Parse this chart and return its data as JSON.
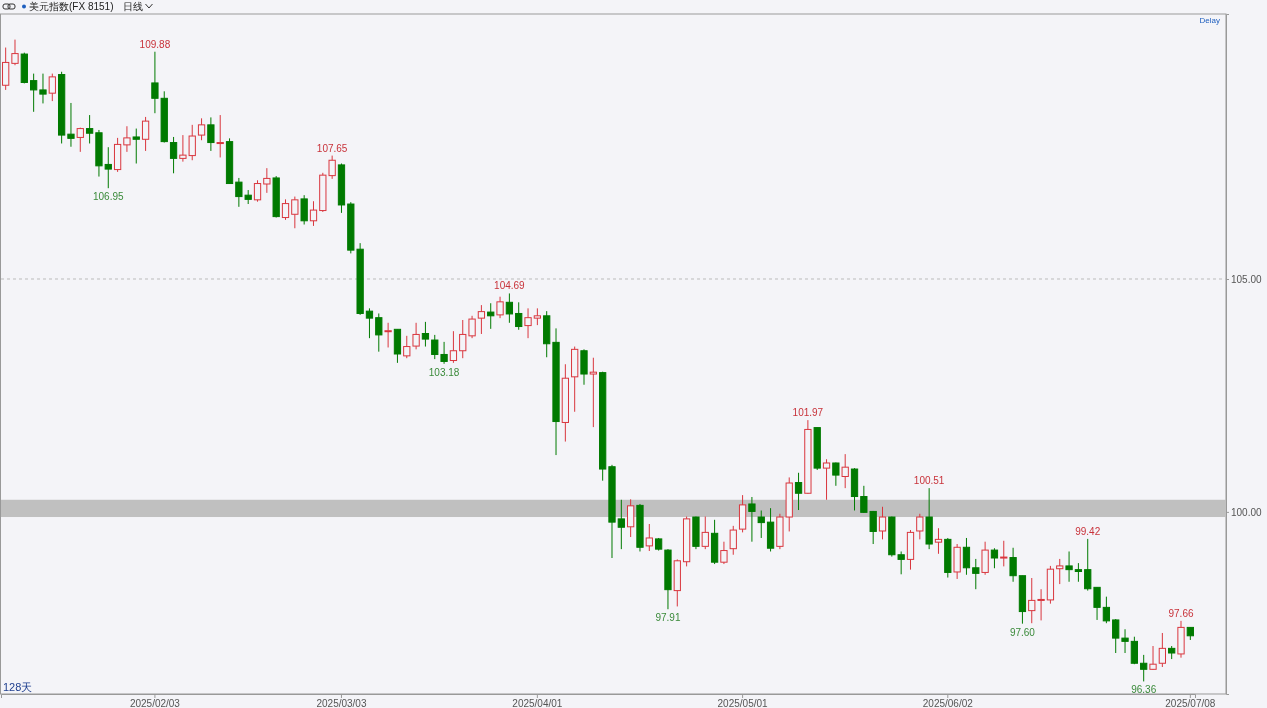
{
  "chart_data": {
    "type": "candlestick",
    "title": "美元指数(FX 8151)",
    "subtitle": "日线",
    "categories": [
      null,
      null,
      null,
      null,
      null,
      null,
      null,
      null,
      null,
      null,
      null,
      null,
      null,
      null,
      null,
      null,
      "2025/02/03",
      null,
      null,
      null,
      null,
      null,
      null,
      null,
      null,
      null,
      null,
      null,
      null,
      null,
      null,
      null,
      null,
      null,
      null,
      null,
      "2025/03/03",
      null,
      null,
      null,
      null,
      null,
      null,
      null,
      null,
      null,
      null,
      null,
      null,
      null,
      null,
      null,
      null,
      null,
      null,
      null,
      null,
      "2025/04/01",
      null,
      null,
      null,
      null,
      null,
      null,
      null,
      null,
      null,
      null,
      null,
      null,
      null,
      null,
      null,
      null,
      null,
      null,
      null,
      null,
      null,
      "2025/05/01",
      null,
      null,
      null,
      null,
      null,
      null,
      null,
      null,
      null,
      null,
      null,
      null,
      null,
      null,
      null,
      null,
      null,
      null,
      null,
      null,
      null,
      "2025/06/02",
      null,
      null,
      null,
      null,
      null,
      null,
      null,
      null,
      null,
      null,
      null,
      null,
      null,
      null,
      null,
      null,
      null,
      null,
      null,
      null,
      null,
      null,
      null,
      null,
      null,
      "2025/07/08"
    ],
    "ohlc": [
      [
        109.16,
        109.97,
        109.06,
        109.65
      ],
      [
        109.63,
        110.14,
        109.59,
        109.84
      ],
      [
        109.83,
        109.86,
        109.2,
        109.22
      ],
      [
        109.26,
        109.41,
        108.59,
        109.06
      ],
      [
        109.06,
        109.41,
        108.77,
        108.97
      ],
      [
        108.99,
        109.41,
        108.82,
        109.34
      ],
      [
        109.39,
        109.45,
        107.91,
        108.09
      ],
      [
        108.11,
        108.78,
        107.84,
        108.02
      ],
      [
        108.04,
        108.25,
        107.73,
        108.23
      ],
      [
        108.23,
        108.52,
        107.91,
        108.13
      ],
      [
        108.14,
        108.2,
        107.2,
        107.43
      ],
      [
        107.46,
        107.83,
        106.95,
        107.36
      ],
      [
        107.35,
        108.03,
        107.3,
        107.89
      ],
      [
        107.88,
        108.28,
        107.73,
        108.03
      ],
      [
        108.05,
        108.23,
        107.48,
        108.0
      ],
      [
        108.0,
        108.48,
        107.75,
        108.39
      ],
      [
        109.21,
        109.88,
        108.56,
        108.88
      ],
      [
        108.88,
        109.03,
        107.93,
        107.95
      ],
      [
        107.93,
        108.05,
        107.27,
        107.59
      ],
      [
        107.59,
        108.09,
        107.52,
        107.66
      ],
      [
        107.65,
        108.31,
        107.55,
        108.07
      ],
      [
        108.09,
        108.45,
        107.98,
        108.31
      ],
      [
        108.31,
        108.47,
        107.75,
        107.93
      ],
      [
        107.93,
        108.52,
        107.61,
        107.93
      ],
      [
        107.95,
        108.02,
        107.04,
        107.05
      ],
      [
        107.08,
        107.17,
        106.55,
        106.77
      ],
      [
        106.8,
        106.91,
        106.61,
        106.71
      ],
      [
        106.7,
        107.12,
        106.66,
        107.05
      ],
      [
        107.04,
        107.38,
        106.85,
        107.16
      ],
      [
        107.17,
        107.21,
        106.32,
        106.34
      ],
      [
        106.32,
        106.71,
        106.27,
        106.62
      ],
      [
        106.39,
        106.77,
        106.09,
        106.7
      ],
      [
        106.72,
        106.8,
        106.17,
        106.25
      ],
      [
        106.25,
        106.67,
        106.14,
        106.48
      ],
      [
        106.47,
        107.28,
        106.44,
        107.23
      ],
      [
        107.22,
        107.65,
        107.15,
        107.55
      ],
      [
        107.45,
        107.48,
        106.42,
        106.59
      ],
      [
        106.61,
        106.65,
        105.55,
        105.62
      ],
      [
        105.64,
        105.77,
        104.23,
        104.26
      ],
      [
        104.31,
        104.37,
        103.73,
        104.16
      ],
      [
        104.17,
        104.26,
        103.44,
        103.8
      ],
      [
        103.87,
        104.06,
        103.53,
        103.89
      ],
      [
        103.92,
        103.92,
        103.2,
        103.39
      ],
      [
        103.35,
        103.78,
        103.3,
        103.55
      ],
      [
        103.56,
        104.06,
        103.49,
        103.81
      ],
      [
        103.83,
        104.08,
        103.55,
        103.71
      ],
      [
        103.69,
        103.8,
        103.28,
        103.38
      ],
      [
        103.38,
        103.65,
        103.18,
        103.23
      ],
      [
        103.25,
        103.88,
        103.2,
        103.46
      ],
      [
        103.46,
        104.12,
        103.3,
        103.81
      ],
      [
        103.78,
        104.21,
        103.73,
        104.14
      ],
      [
        104.16,
        104.44,
        103.82,
        104.3
      ],
      [
        104.29,
        104.48,
        103.93,
        104.21
      ],
      [
        104.23,
        104.62,
        104.16,
        104.51
      ],
      [
        104.5,
        104.69,
        104.06,
        104.25
      ],
      [
        104.26,
        104.5,
        103.91,
        103.98
      ],
      [
        104.0,
        104.37,
        103.73,
        104.17
      ],
      [
        104.16,
        104.37,
        104.01,
        104.21
      ],
      [
        104.21,
        104.31,
        103.32,
        103.61
      ],
      [
        103.64,
        103.94,
        101.22,
        101.94
      ],
      [
        101.92,
        103.17,
        101.51,
        102.87
      ],
      [
        102.9,
        103.55,
        102.15,
        103.49
      ],
      [
        103.46,
        103.49,
        102.73,
        102.96
      ],
      [
        102.96,
        103.31,
        101.82,
        103.0
      ],
      [
        102.99,
        103.01,
        100.67,
        100.92
      ],
      [
        100.97,
        101.01,
        99.01,
        99.78
      ],
      [
        99.85,
        100.26,
        99.2,
        99.67
      ],
      [
        99.68,
        100.27,
        99.46,
        100.13
      ],
      [
        100.14,
        100.17,
        99.15,
        99.24
      ],
      [
        99.27,
        99.74,
        99.16,
        99.44
      ],
      [
        99.42,
        99.44,
        99.17,
        99.2
      ],
      [
        99.18,
        99.2,
        97.91,
        98.33
      ],
      [
        98.31,
        98.98,
        97.97,
        98.95
      ],
      [
        98.93,
        99.9,
        98.83,
        99.85
      ],
      [
        99.89,
        99.9,
        99.2,
        99.26
      ],
      [
        99.26,
        99.9,
        99.2,
        99.56
      ],
      [
        99.54,
        99.83,
        98.88,
        98.92
      ],
      [
        98.92,
        99.36,
        98.88,
        99.17
      ],
      [
        99.21,
        99.7,
        99.08,
        99.61
      ],
      [
        99.63,
        100.36,
        99.56,
        100.15
      ],
      [
        100.17,
        100.32,
        99.36,
        100.01
      ],
      [
        99.89,
        100.03,
        99.44,
        99.77
      ],
      [
        99.78,
        100.08,
        99.15,
        99.22
      ],
      [
        99.26,
        99.96,
        99.2,
        99.89
      ],
      [
        99.89,
        100.74,
        99.58,
        100.62
      ],
      [
        100.63,
        100.84,
        100.04,
        100.4
      ],
      [
        100.4,
        101.97,
        100.39,
        101.77
      ],
      [
        101.81,
        101.81,
        100.9,
        100.94
      ],
      [
        100.94,
        101.13,
        100.26,
        101.05
      ],
      [
        101.05,
        101.06,
        100.56,
        100.79
      ],
      [
        100.76,
        101.24,
        100.51,
        100.96
      ],
      [
        100.92,
        100.94,
        100.03,
        100.33
      ],
      [
        100.33,
        100.56,
        99.98,
        99.99
      ],
      [
        100.01,
        100.02,
        99.31,
        99.58
      ],
      [
        99.59,
        100.11,
        99.41,
        99.89
      ],
      [
        99.89,
        99.9,
        99.04,
        99.08
      ],
      [
        99.08,
        99.15,
        98.66,
        98.98
      ],
      [
        98.98,
        99.61,
        98.76,
        99.56
      ],
      [
        99.59,
        99.96,
        99.41,
        99.89
      ],
      [
        99.89,
        100.51,
        99.2,
        99.31
      ],
      [
        99.35,
        99.65,
        99.1,
        99.41
      ],
      [
        99.41,
        99.44,
        98.59,
        98.7
      ],
      [
        98.71,
        99.31,
        98.56,
        99.24
      ],
      [
        99.24,
        99.44,
        98.65,
        98.8
      ],
      [
        98.8,
        98.99,
        98.34,
        98.68
      ],
      [
        98.7,
        99.36,
        98.65,
        99.18
      ],
      [
        99.18,
        99.22,
        98.79,
        99.01
      ],
      [
        99.01,
        99.38,
        98.83,
        99.03
      ],
      [
        99.02,
        99.23,
        98.5,
        98.63
      ],
      [
        98.63,
        98.63,
        97.6,
        97.86
      ],
      [
        97.88,
        98.58,
        97.61,
        98.1
      ],
      [
        98.1,
        98.34,
        97.67,
        98.12
      ],
      [
        98.11,
        98.84,
        98.03,
        98.77
      ],
      [
        98.78,
        98.99,
        98.45,
        98.84
      ],
      [
        98.84,
        99.15,
        98.5,
        98.76
      ],
      [
        98.76,
        98.9,
        98.5,
        98.72
      ],
      [
        98.76,
        99.42,
        98.31,
        98.35
      ],
      [
        98.38,
        98.38,
        97.68,
        97.95
      ],
      [
        97.95,
        98.18,
        97.61,
        97.66
      ],
      [
        97.68,
        97.7,
        96.97,
        97.29
      ],
      [
        97.29,
        97.48,
        96.97,
        97.22
      ],
      [
        97.22,
        97.32,
        96.73,
        96.75
      ],
      [
        96.75,
        96.93,
        96.36,
        96.62
      ],
      [
        96.62,
        97.12,
        96.61,
        96.73
      ],
      [
        96.75,
        97.4,
        96.67,
        97.07
      ],
      [
        97.07,
        97.12,
        96.84,
        96.97
      ],
      [
        96.95,
        97.66,
        96.87,
        97.52
      ],
      [
        97.52,
        97.52,
        97.25,
        97.34
      ]
    ],
    "ylim": [
      96.09,
      110.69
    ],
    "yticks": [
      {
        "value": 100,
        "label": "100.00"
      },
      {
        "value": 105,
        "label": "105.00"
      }
    ],
    "grid": "y",
    "bands": [
      {
        "axis": "y",
        "from": 99.89,
        "to": 100.26,
        "color": "#c0c0c0"
      }
    ],
    "annotations": [
      "Delay",
      "128天",
      {
        "text": "109.88",
        "y": 109.88
      },
      {
        "text": "106.95",
        "y": 106.95
      },
      {
        "text": "107.65",
        "y": 107.65
      },
      {
        "text": "104.69",
        "y": 104.69
      },
      {
        "text": "103.18",
        "y": 103.18
      },
      {
        "text": "97.91",
        "y": 97.91
      },
      {
        "text": "101.97",
        "y": 101.97
      },
      {
        "text": "100.51",
        "y": 100.51
      },
      {
        "text": "97.60",
        "y": 97.6
      },
      {
        "text": "99.42",
        "y": 99.42
      },
      {
        "text": "97.66",
        "y": 97.66
      },
      {
        "text": "96.36",
        "y": 96.36
      }
    ]
  }
}
